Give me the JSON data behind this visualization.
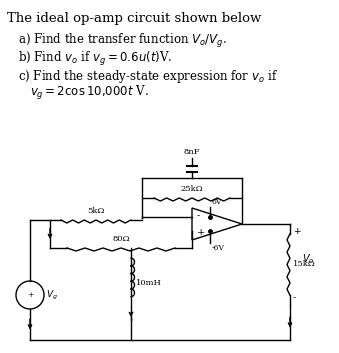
{
  "bg_color": "#ffffff",
  "circuit_color": "#000000",
  "title": "The ideal op-amp circuit shown below",
  "line_a": "a) Find the transfer function $V_o / V_g$.",
  "line_b": "b) Find $v_o$ if $v_g = 0.6u(t)$V.",
  "line_c": "c) Find the steady-state expression for $v_o$ if",
  "line_c2": "$v_g = 2\\cos10{,}000t$ V.",
  "lw": 1.0
}
